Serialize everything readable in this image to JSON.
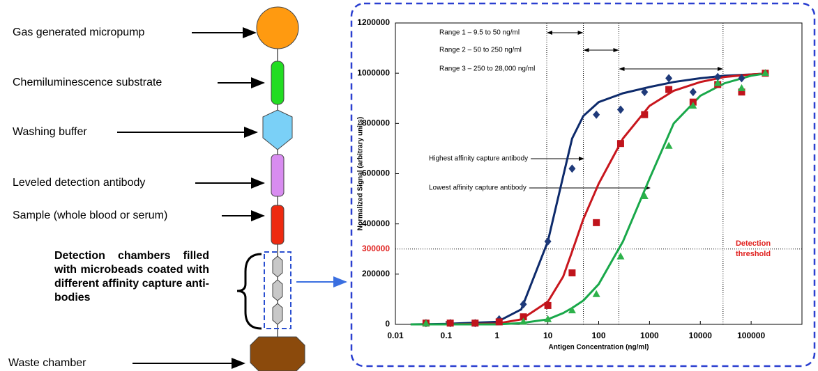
{
  "diagram": {
    "labels": [
      "Gas generated micropump",
      "Chemiluminescence substrate",
      "Washing buffer",
      "Leveled detection antibody",
      "Sample (whole blood or serum)",
      "Waste chamber"
    ],
    "detection_label": "Detection chambers filled with microbeads coated with different affinity capture anti-bodies"
  },
  "chart_data": {
    "type": "scatter",
    "x_label": "Antigen Concentration (ng/ml)",
    "y_label": "Normalized Signal (arbitrary units)",
    "log_x": true,
    "xlim": [
      0.01,
      1000000
    ],
    "ylim": [
      0,
      1200000
    ],
    "xticks": [
      0.01,
      0.1,
      1,
      10,
      100,
      1000,
      10000,
      100000
    ],
    "yticks": [
      0,
      200000,
      400000,
      600000,
      800000,
      1000000,
      1200000
    ],
    "ranges": [
      "Range 1 – 9.5 to 50 ng/ml",
      "Range 2 – 50 to 250 ng/ml",
      "Range 3 – 250 to 28,000 ng/ml"
    ],
    "range_bounds": [
      9.5,
      50,
      250,
      28000
    ],
    "threshold_value": 300000,
    "threshold_label": "Detection threshold",
    "threshold_color": "#e0201e",
    "annotations": [
      "Highest affinity capture antibody",
      "Lowest affinity capture antibody"
    ],
    "series": [
      {
        "kind": "points",
        "marker": "diamond",
        "color": "#1f3a7a",
        "x": [
          0.04,
          0.12,
          0.37,
          1.1,
          3.3,
          10,
          30,
          90,
          270,
          800,
          2400,
          7200,
          22000,
          65000
        ],
        "values": [
          5000,
          5000,
          5000,
          20000,
          80000,
          330000,
          620000,
          835000,
          855000,
          925000,
          980000,
          925000,
          985000,
          980000
        ]
      },
      {
        "kind": "points",
        "marker": "square",
        "color": "#c0141c",
        "x": [
          0.04,
          0.12,
          0.37,
          1.1,
          3.3,
          10,
          30,
          90,
          270,
          800,
          2400,
          7200,
          22000,
          65000,
          190000
        ],
        "values": [
          5000,
          5000,
          5000,
          10000,
          30000,
          75000,
          205000,
          405000,
          720000,
          835000,
          935000,
          885000,
          955000,
          925000,
          1000000
        ]
      },
      {
        "kind": "points",
        "marker": "triangle",
        "color": "#2db24a",
        "x": [
          0.04,
          3.3,
          10,
          30,
          90,
          270,
          800,
          2400,
          7200,
          22000,
          65000,
          190000
        ],
        "values": [
          3000,
          10000,
          20000,
          55000,
          120000,
          270000,
          510000,
          710000,
          870000,
          960000,
          940000,
          1000000
        ]
      },
      {
        "kind": "curve",
        "color": "#0d2a6b",
        "x": [
          0.02,
          0.1,
          1,
          3,
          10,
          20,
          30,
          50,
          100,
          300,
          1000,
          3000,
          10000,
          30000,
          100000,
          180000
        ],
        "values": [
          0,
          2000,
          10000,
          60000,
          330000,
          590000,
          740000,
          830000,
          885000,
          920000,
          945000,
          965000,
          980000,
          990000,
          995000,
          998000
        ]
      },
      {
        "kind": "curve",
        "color": "#c8161d",
        "x": [
          0.02,
          0.1,
          1,
          3,
          10,
          20,
          30,
          50,
          100,
          300,
          1000,
          3000,
          10000,
          30000,
          100000,
          180000
        ],
        "values": [
          0,
          0,
          3000,
          20000,
          90000,
          190000,
          290000,
          420000,
          560000,
          740000,
          870000,
          930000,
          965000,
          985000,
          995000,
          998000
        ]
      },
      {
        "kind": "curve",
        "color": "#19a84a",
        "x": [
          0.02,
          0.1,
          1,
          3,
          10,
          20,
          30,
          50,
          100,
          300,
          1000,
          3000,
          10000,
          30000,
          100000,
          180000
        ],
        "values": [
          0,
          0,
          0,
          5000,
          20000,
          45000,
          65000,
          95000,
          160000,
          330000,
          580000,
          800000,
          910000,
          960000,
          990000,
          998000
        ]
      }
    ]
  }
}
